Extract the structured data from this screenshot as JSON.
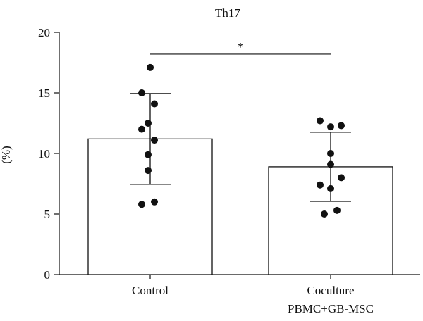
{
  "chart_data": {
    "type": "bar",
    "title": "Th17",
    "ylabel": "(%)",
    "xlabel": "",
    "ylim": [
      0,
      20
    ],
    "yticks": [
      0,
      5,
      10,
      15,
      20
    ],
    "categories": [
      {
        "label": "Control",
        "sublabel": ""
      },
      {
        "label": "Coculture",
        "sublabel": "PBMC+GB-MSC"
      }
    ],
    "values": [
      11.2,
      8.9
    ],
    "error_sd": [
      3.75,
      2.85
    ],
    "points": [
      [
        {
          "x": 0.0,
          "y": 17.1
        },
        {
          "x": -0.04,
          "y": 15.0
        },
        {
          "x": 0.02,
          "y": 14.1
        },
        {
          "x": -0.01,
          "y": 12.5
        },
        {
          "x": -0.04,
          "y": 12.0
        },
        {
          "x": 0.02,
          "y": 11.1
        },
        {
          "x": -0.01,
          "y": 9.9
        },
        {
          "x": -0.01,
          "y": 8.6
        },
        {
          "x": -0.04,
          "y": 5.8
        },
        {
          "x": 0.02,
          "y": 6.0
        }
      ],
      [
        {
          "x": -0.05,
          "y": 12.7
        },
        {
          "x": 0.0,
          "y": 12.2
        },
        {
          "x": 0.05,
          "y": 12.3
        },
        {
          "x": 0.0,
          "y": 10.0
        },
        {
          "x": 0.0,
          "y": 9.1
        },
        {
          "x": -0.05,
          "y": 7.4
        },
        {
          "x": 0.05,
          "y": 8.0
        },
        {
          "x": 0.0,
          "y": 7.1
        },
        {
          "x": -0.03,
          "y": 5.0
        },
        {
          "x": 0.03,
          "y": 5.3
        }
      ]
    ],
    "significance": {
      "from": 0,
      "to": 1,
      "y": 18.2,
      "label": "*"
    },
    "bar_fill": "#ffffff",
    "bar_stroke": "#111111",
    "point_color": "#111111"
  }
}
